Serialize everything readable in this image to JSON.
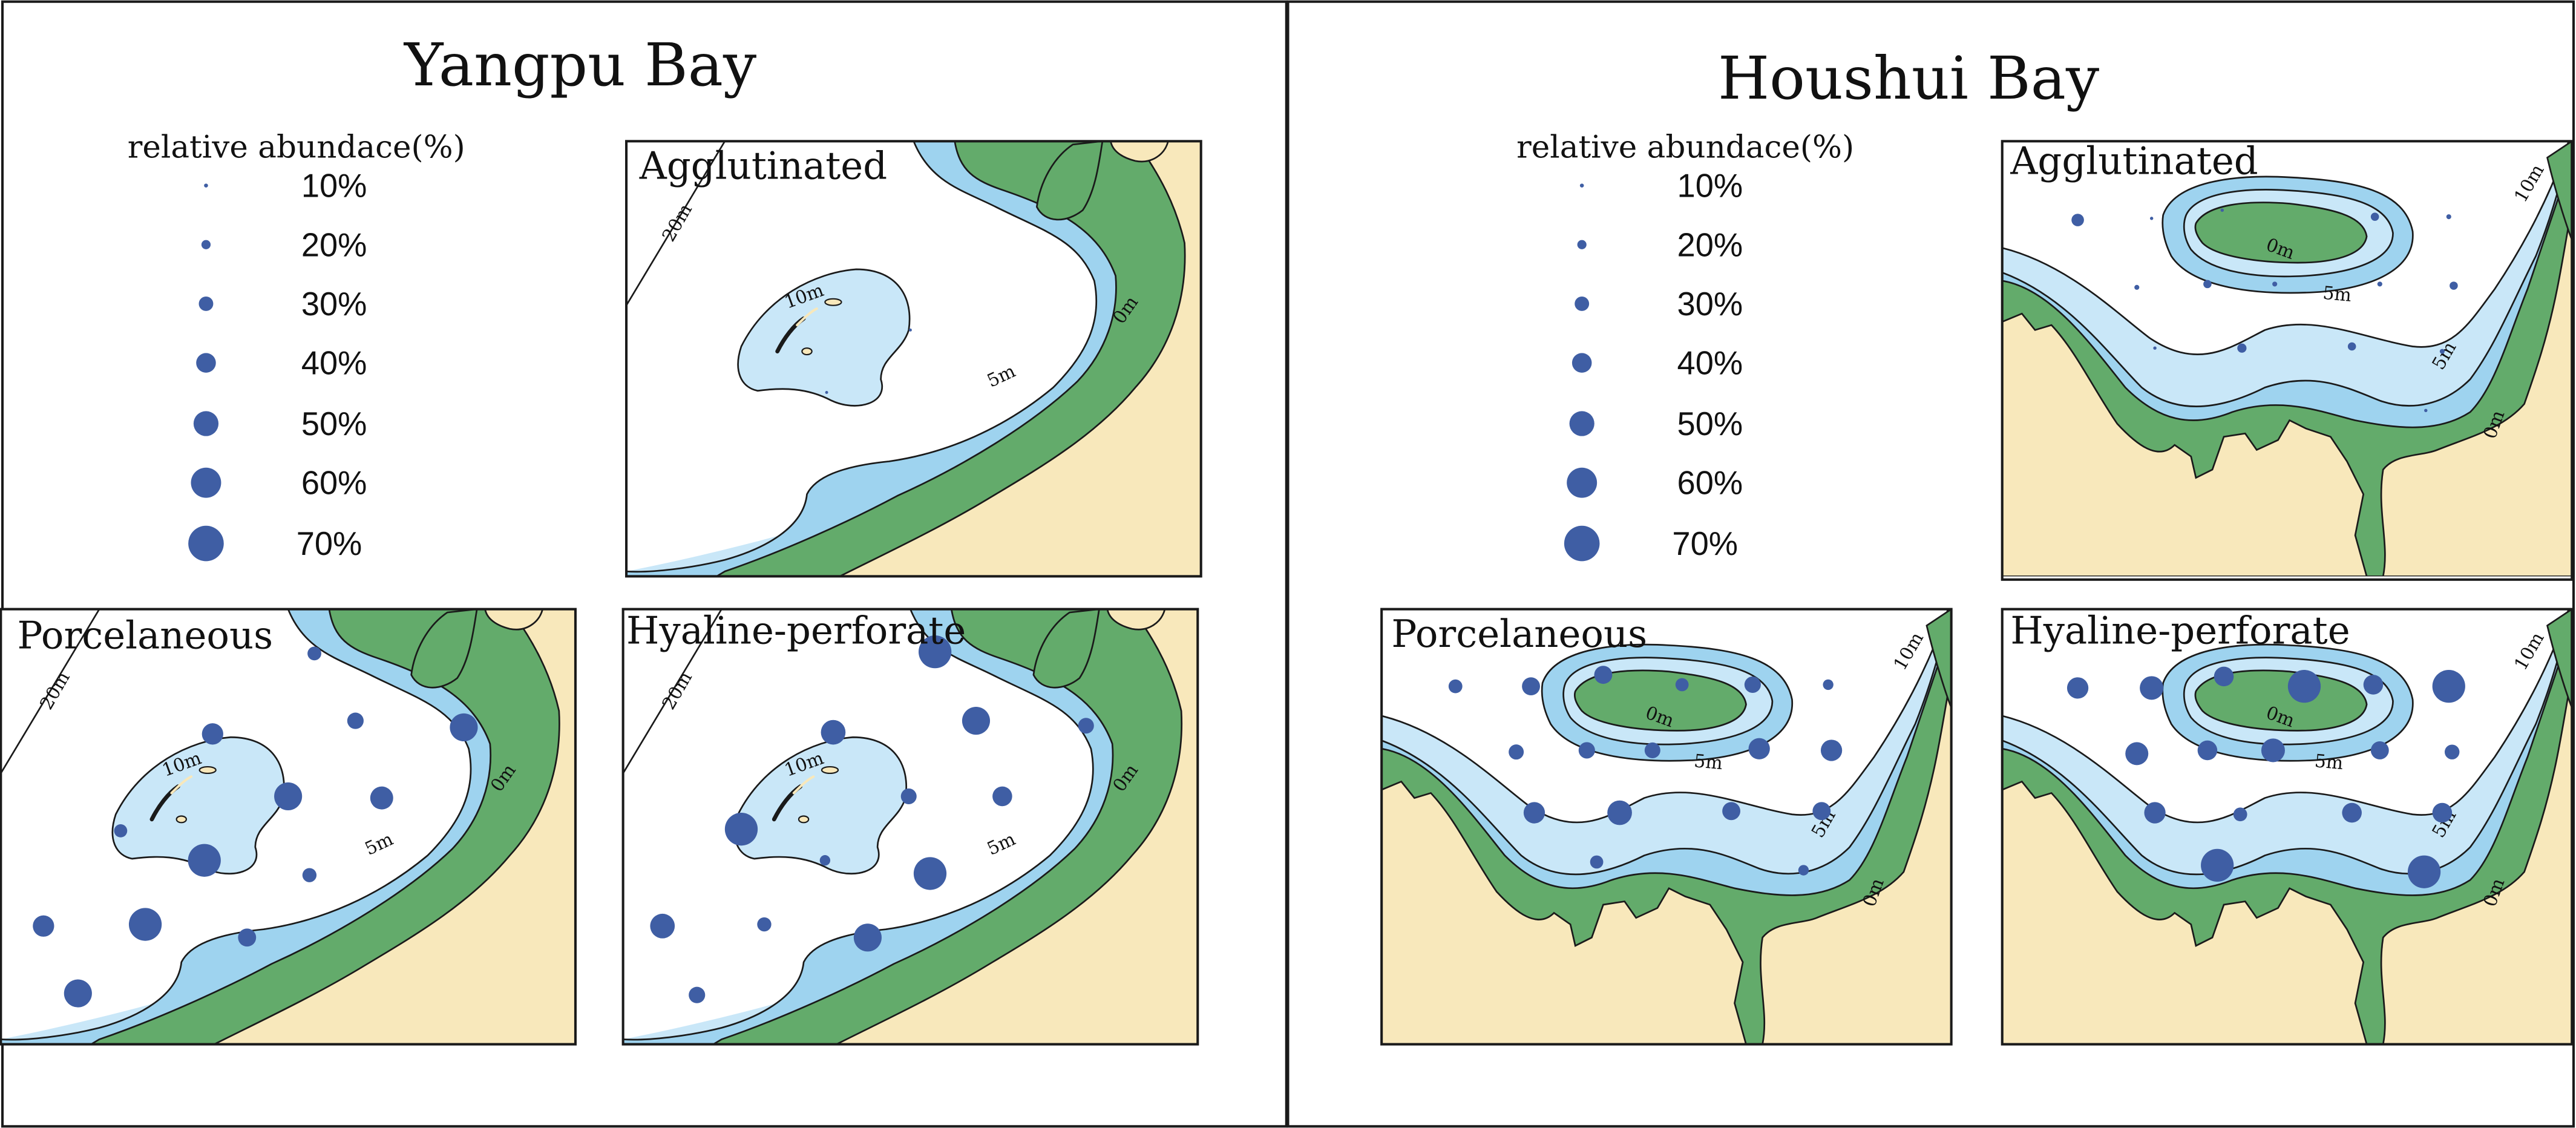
{
  "colors": {
    "land": "#f8e8bb",
    "intertidal": "#63ab6b",
    "shallow": "#9ed3ef",
    "deep": "#c9e7f8",
    "dot": "#3f5ea4",
    "stroke": "#1a1a1a"
  },
  "bays": [
    {
      "title": "Yangpu Bay",
      "legend": {
        "title": "relative abundace(%)",
        "entries": [
          {
            "label": "10%",
            "value": 10
          },
          {
            "label": "20%",
            "value": 20
          },
          {
            "label": "30%",
            "value": 30
          },
          {
            "label": "40%",
            "value": 40
          },
          {
            "label": "50%",
            "value": 50
          },
          {
            "label": "60%",
            "value": 60
          },
          {
            "label": "70%",
            "value": 70
          }
        ]
      },
      "maps": [
        {
          "label": "Agglutinated",
          "contours": [
            "20m",
            "10m",
            "5m",
            "0m"
          ]
        },
        {
          "label": "Porcelaneous",
          "contours": [
            "20m",
            "10m",
            "5m",
            "0m"
          ]
        },
        {
          "label": "Hyaline-perforate",
          "contours": [
            "20m",
            "10m",
            "5m",
            "0m"
          ]
        }
      ]
    },
    {
      "title": "Houshui Bay",
      "legend": {
        "title": "relative abundace(%)",
        "entries": [
          {
            "label": "10%",
            "value": 10
          },
          {
            "label": "20%",
            "value": 20
          },
          {
            "label": "30%",
            "value": 30
          },
          {
            "label": "40%",
            "value": 40
          },
          {
            "label": "50%",
            "value": 50
          },
          {
            "label": "60%",
            "value": 60
          },
          {
            "label": "70%",
            "value": 70
          }
        ]
      },
      "maps": [
        {
          "label": "Agglutinated",
          "contours": [
            "10m",
            "0m",
            "5m",
            "5m",
            "0m"
          ]
        },
        {
          "label": "Porcelaneous",
          "contours": [
            "10m",
            "0m",
            "5m",
            "5m",
            "0m"
          ]
        },
        {
          "label": "Hyaline-perforate",
          "contours": [
            "10m",
            "0m",
            "5m",
            "5m",
            "0m"
          ]
        }
      ]
    }
  ]
}
